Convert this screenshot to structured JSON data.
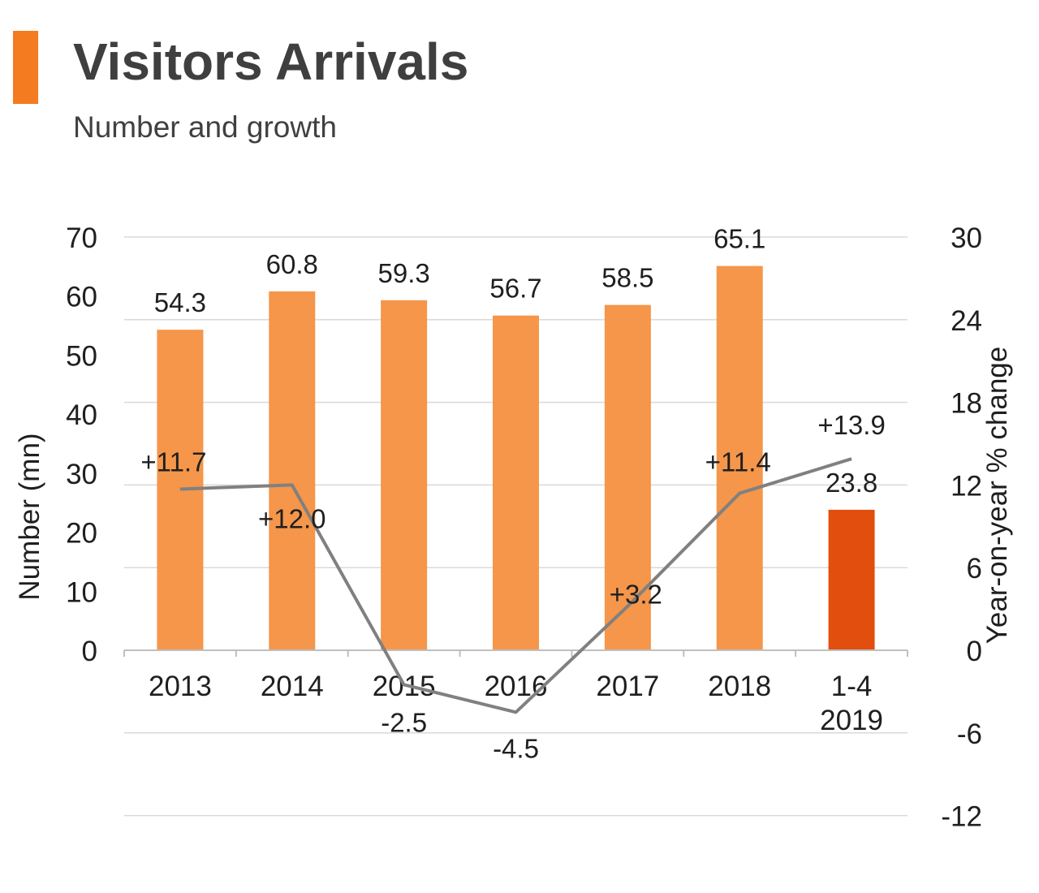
{
  "header": {
    "title": "Visitors Arrivals",
    "subtitle": "Number and growth"
  },
  "colors": {
    "accent": "#f47b20",
    "bar": "#f5964a",
    "bar_highlight": "#e24e0e",
    "line": "#808080",
    "grid": "#d9d9d9",
    "title": "#3f3f3f"
  },
  "chart_data": {
    "type": "bar",
    "categories": [
      "2013",
      "2014",
      "2015",
      "2016",
      "2017",
      "2018",
      "1-4\n2019"
    ],
    "series": [
      {
        "type": "bar",
        "axis": "left",
        "values": [
          54.3,
          60.8,
          59.3,
          56.7,
          58.5,
          65.1,
          23.8
        ],
        "labels": [
          "54.3",
          "60.8",
          "59.3",
          "56.7",
          "58.5",
          "65.1",
          "23.8"
        ],
        "highlight_index": 6
      },
      {
        "type": "line",
        "axis": "right",
        "values": [
          11.7,
          12.0,
          -2.5,
          -4.5,
          3.2,
          11.4,
          13.9
        ],
        "labels": [
          "+11.7",
          "+12.0",
          "-2.5",
          "-4.5",
          "+3.2",
          "+11.4",
          "+13.9"
        ]
      }
    ],
    "ylabel": "Number (mn)",
    "y2label": "Year-on-year % change",
    "ylim": [
      0,
      70
    ],
    "yticks": [
      "0",
      "10",
      "20",
      "30",
      "40",
      "50",
      "60",
      "70"
    ],
    "y2lim": [
      -12,
      30
    ],
    "y2ticks": [
      "-12",
      "-6",
      "0",
      "6",
      "12",
      "18",
      "24",
      "30"
    ],
    "grid": true,
    "legend": "none"
  }
}
